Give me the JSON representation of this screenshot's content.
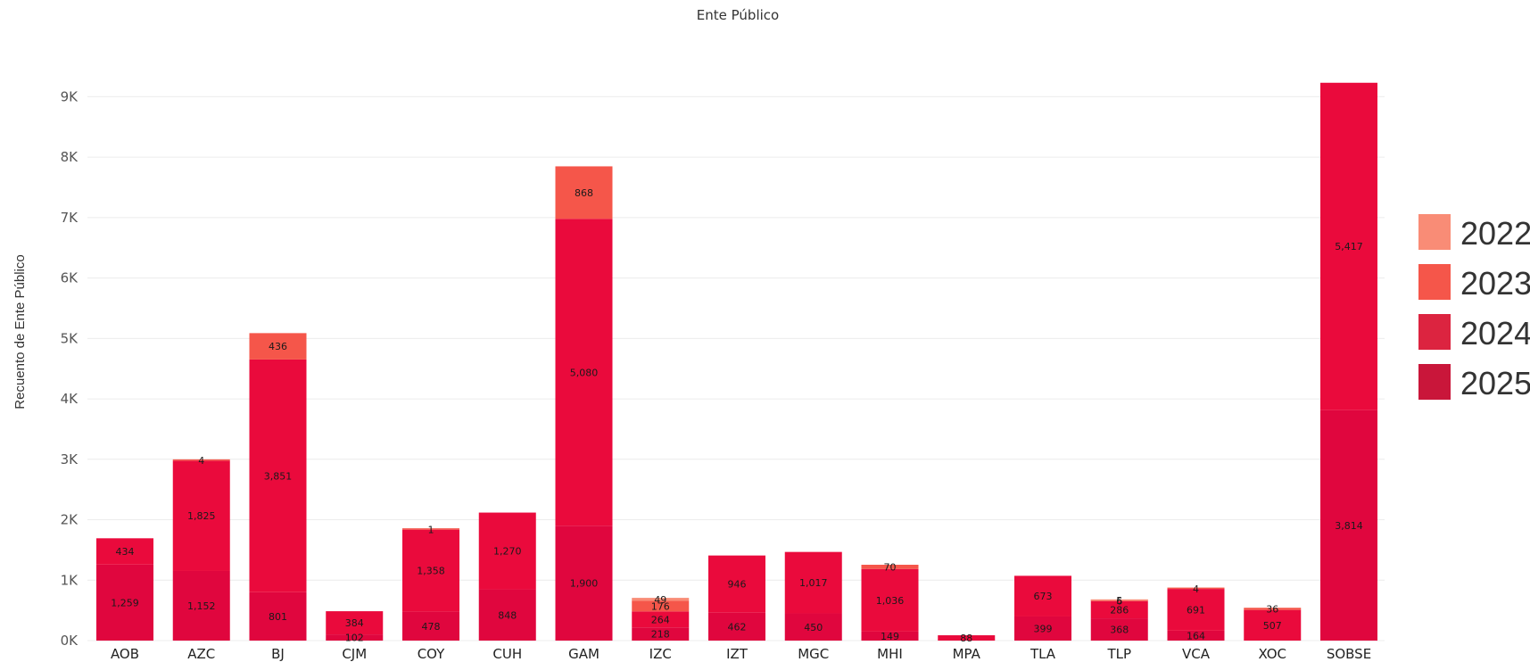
{
  "chart_data": {
    "type": "bar",
    "stacked": true,
    "title": "Ente Público",
    "xlabel": "",
    "ylabel": "Recuento de Ente Público",
    "ylim": [
      0,
      9700
    ],
    "yticks": [
      0,
      1000,
      2000,
      3000,
      4000,
      5000,
      6000,
      7000,
      8000,
      9000
    ],
    "ytick_labels": [
      "0K",
      "1K",
      "2K",
      "3K",
      "4K",
      "5K",
      "6K",
      "7K",
      "8K",
      "9K"
    ],
    "grid": true,
    "legend_position": "right",
    "categories": [
      "AOB",
      "AZC",
      "BJ",
      "CJM",
      "COY",
      "CUH",
      "GAM",
      "IZC",
      "IZT",
      "MGC",
      "MHI",
      "MPA",
      "TLA",
      "TLP",
      "VCA",
      "XOC",
      "SOBSE"
    ],
    "series": [
      {
        "name": "2025",
        "color": "#e0063e",
        "values": [
          1259,
          1152,
          801,
          102,
          478,
          848,
          1900,
          218,
          462,
          450,
          149,
          null,
          399,
          368,
          164,
          null,
          3814
        ],
        "labels": [
          "1,259",
          "1,152",
          "801",
          "102",
          "478",
          "848",
          "1,900",
          "218",
          "462",
          "450",
          "149",
          "",
          "399",
          "368",
          "164",
          "",
          "3,814"
        ]
      },
      {
        "name": "2024",
        "color": "#ea0a3c",
        "values": [
          434,
          1825,
          3851,
          384,
          1358,
          1270,
          5080,
          264,
          946,
          1017,
          1036,
          88,
          673,
          286,
          691,
          507,
          5417
        ],
        "labels": [
          "434",
          "1,825",
          "3,851",
          "384",
          "1,358",
          "1,270",
          "5,080",
          "264",
          "946",
          "1,017",
          "1,036",
          "88",
          "673",
          "286",
          "691",
          "507",
          "5,417"
        ]
      },
      {
        "name": "2023",
        "color": "#f5564a",
        "values": [
          null,
          4,
          436,
          null,
          1,
          null,
          868,
          176,
          null,
          null,
          70,
          null,
          null,
          6,
          4,
          36,
          null
        ],
        "labels": [
          "",
          "4",
          "436",
          "",
          "1",
          "",
          "868",
          "176",
          "",
          "",
          "70",
          "",
          "",
          "6",
          "4",
          "36",
          ""
        ]
      },
      {
        "name": "2022",
        "color": "#f98c76",
        "values": [
          null,
          null,
          null,
          null,
          null,
          null,
          null,
          49,
          null,
          null,
          null,
          null,
          null,
          5,
          null,
          null,
          null
        ],
        "labels": [
          "",
          "",
          "",
          "",
          "",
          "",
          "",
          "49",
          "",
          "",
          "",
          "",
          "",
          "5",
          "",
          "",
          ""
        ]
      }
    ],
    "legend": [
      {
        "name": "2022",
        "color": "#f98c76"
      },
      {
        "name": "2023",
        "color": "#f5564a"
      },
      {
        "name": "2024",
        "color": "#dc2440"
      },
      {
        "name": "2025",
        "color": "#c9163a"
      }
    ]
  }
}
